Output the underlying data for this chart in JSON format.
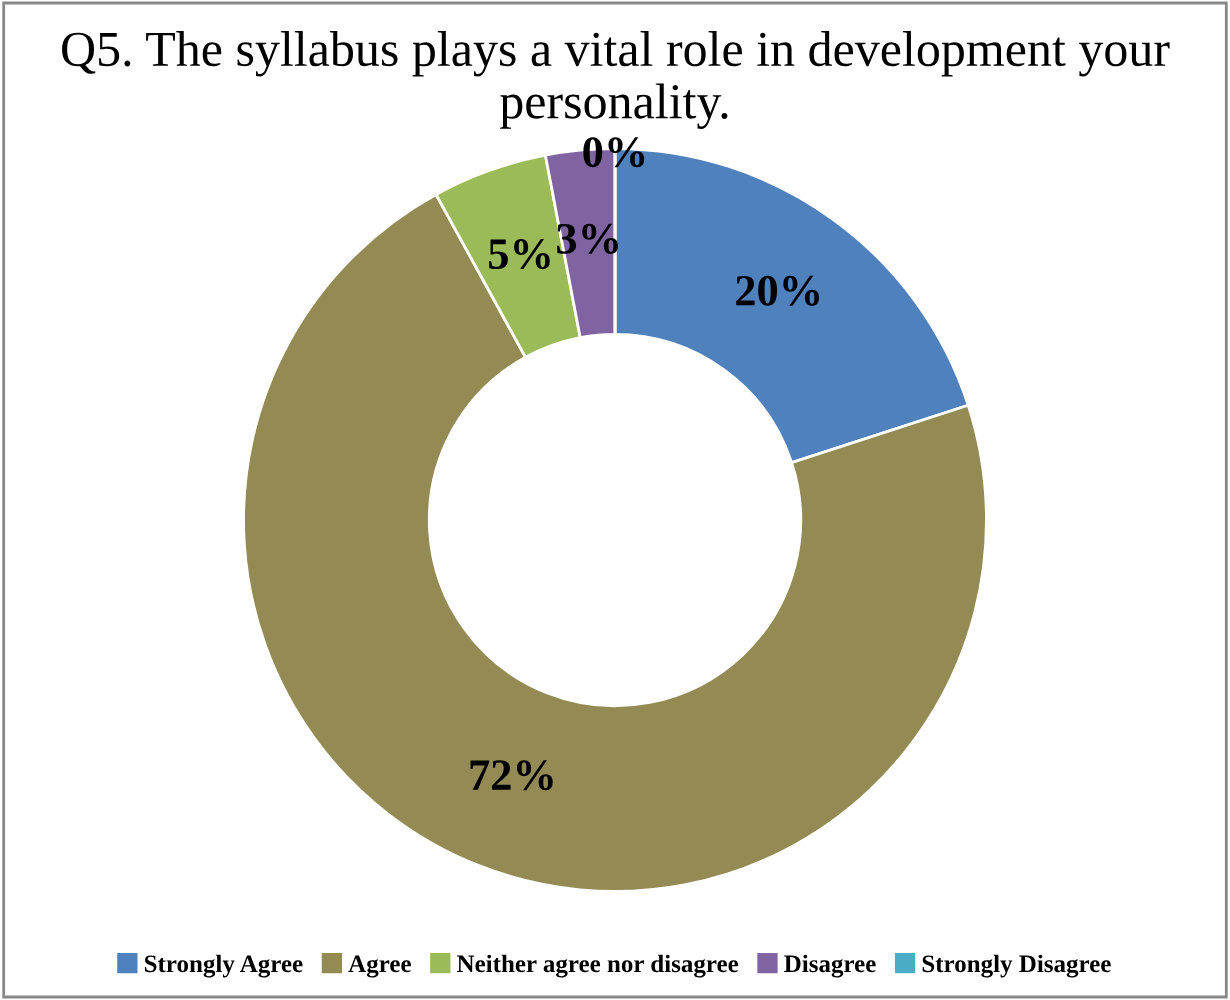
{
  "chart_data": {
    "type": "donut",
    "title": "Q5. The syllabus plays a vital role in development your personality.",
    "categories": [
      "Strongly Agree",
      "Agree",
      "Neither agree nor disagree",
      "Disagree",
      "Strongly Disagree"
    ],
    "values": [
      20,
      72,
      5,
      3,
      0
    ],
    "colors": [
      "#4f81bd",
      "#948a54",
      "#9bbb59",
      "#8064a2",
      "#4bacc6"
    ],
    "value_labels": [
      "20%",
      "72%",
      "5%",
      "3%",
      "0%"
    ],
    "legend": "bottom"
  }
}
